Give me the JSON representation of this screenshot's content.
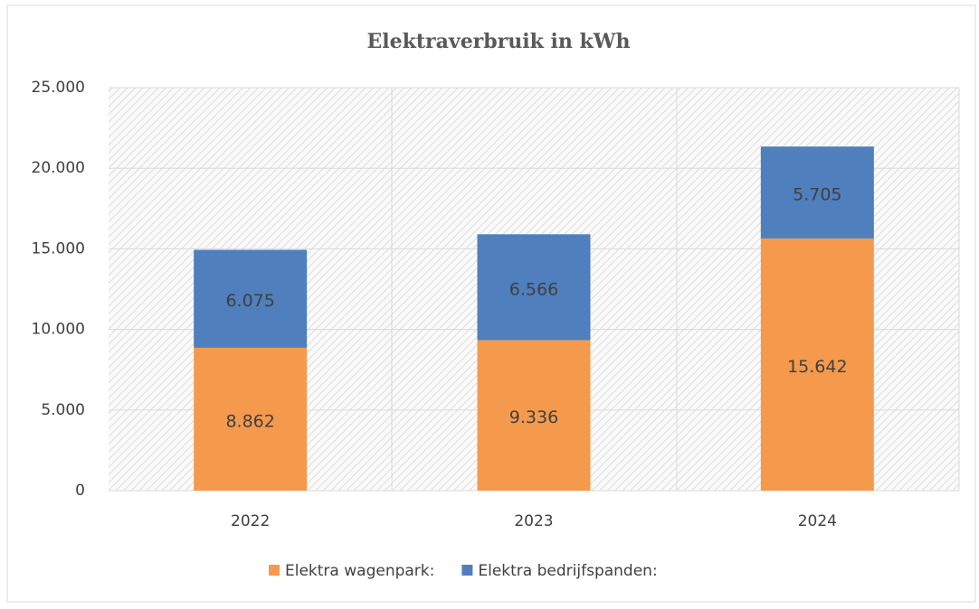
{
  "chart_data": {
    "type": "stacked_bar",
    "title": "Elektraverbruik in kWh",
    "categories": [
      "2022",
      "2023",
      "2024"
    ],
    "series": [
      {
        "name": "Elektra wagenpark:",
        "color": "#f59a4c",
        "values": [
          8862,
          9336,
          15642
        ],
        "value_labels": [
          "8.862",
          "9.336",
          "15.642"
        ]
      },
      {
        "name": "Elektra bedrijfspanden:",
        "color": "#4f7fbd",
        "values": [
          6075,
          6566,
          5705
        ],
        "value_labels": [
          "6.075",
          "6.566",
          "5.705"
        ]
      }
    ],
    "ylim": [
      0,
      25000
    ],
    "yticks": [
      0,
      {
        "value": 5000,
        "label": "5.000"
      },
      {
        "value": 10000,
        "label": "10.000"
      },
      {
        "value": 15000,
        "label": "15.000"
      },
      {
        "value": 20000,
        "label": "20.000"
      },
      {
        "value": 25000,
        "label": "25.000"
      }
    ],
    "grid": true,
    "legend": "bottom"
  }
}
